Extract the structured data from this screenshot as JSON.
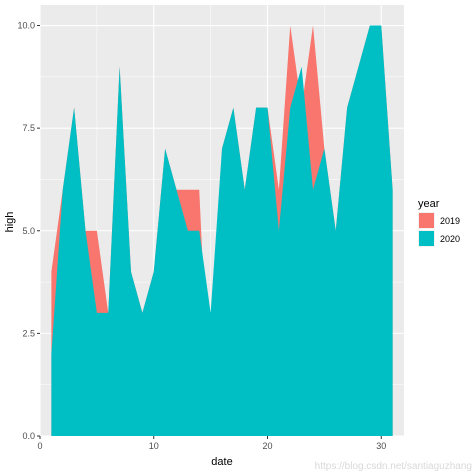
{
  "chart_data": {
    "type": "area",
    "xlabel": "date",
    "ylabel": "high",
    "xlim": [
      0,
      32
    ],
    "ylim": [
      0,
      10.5
    ],
    "x_ticks": [
      0,
      10,
      20,
      30
    ],
    "y_ticks": [
      0,
      2.5,
      5,
      7.5,
      10
    ],
    "y_tick_labels": [
      "0.0",
      "2.5",
      "5.0",
      "7.5",
      "10.0"
    ],
    "grid": true,
    "legend": {
      "title": "year",
      "placement": "right"
    },
    "x": [
      1,
      2,
      3,
      4,
      5,
      6,
      7,
      8,
      9,
      10,
      11,
      12,
      13,
      14,
      15,
      16,
      17,
      18,
      19,
      20,
      21,
      22,
      23,
      24,
      25,
      26,
      27,
      28,
      29,
      30,
      31
    ],
    "series": [
      {
        "name": "2019",
        "color": "#F8766D",
        "values": [
          4,
          6,
          8,
          5,
          5,
          3,
          9,
          4,
          3,
          4,
          7,
          6,
          6,
          6,
          0,
          7,
          8,
          6,
          8,
          8,
          6,
          10,
          8,
          10,
          7,
          5,
          8,
          9,
          10,
          10,
          6
        ]
      },
      {
        "name": "2020",
        "color": "#00BFC4",
        "values": [
          2,
          6,
          8,
          5,
          3,
          3,
          9,
          4,
          3,
          4,
          7,
          6,
          5,
          5,
          3,
          7,
          8,
          6,
          8,
          8,
          5,
          8,
          9,
          6,
          7,
          5,
          8,
          9,
          10,
          10,
          6
        ]
      }
    ]
  },
  "watermark": "https://blog.csdn.net/santiaguzhang"
}
